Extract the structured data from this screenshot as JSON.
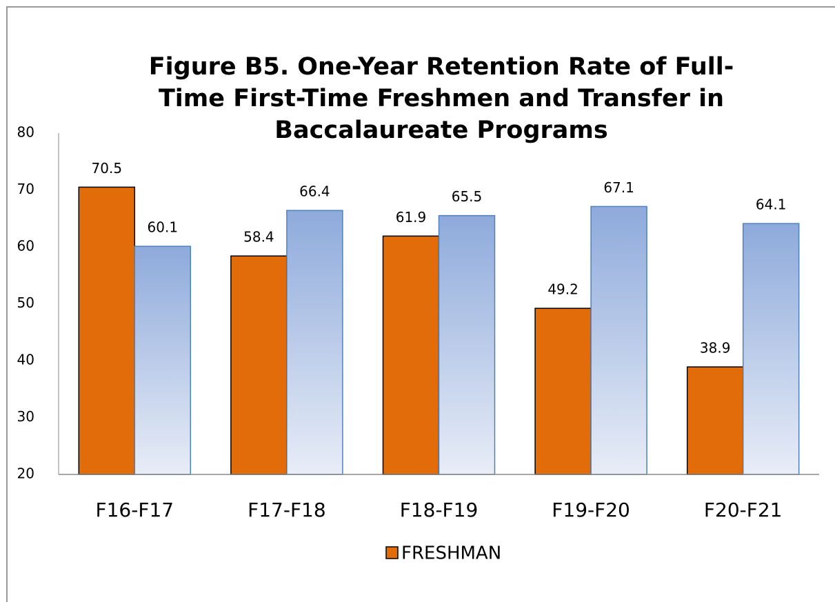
{
  "chart_data": {
    "type": "bar",
    "title": "Figure B5. One-Year Retention Rate of Full-Time First-Time Freshmen and Transfer in Baccalaureate Programs",
    "categories": [
      "F16-F17",
      "F17-F18",
      "F18-F19",
      "F19-F20",
      "F20-F21"
    ],
    "series": [
      {
        "name": "FRESHMAN",
        "color": "#e36c0a",
        "values": [
          70.5,
          58.4,
          61.9,
          49.2,
          38.9
        ]
      },
      {
        "color": "#8eaadb",
        "values": [
          60.1,
          66.4,
          65.5,
          67.1,
          64.1
        ]
      }
    ],
    "ylim": [
      20,
      80
    ],
    "yticks": [
      20,
      30,
      40,
      50,
      60,
      70,
      80
    ],
    "grid": false,
    "legend": "bottom"
  }
}
